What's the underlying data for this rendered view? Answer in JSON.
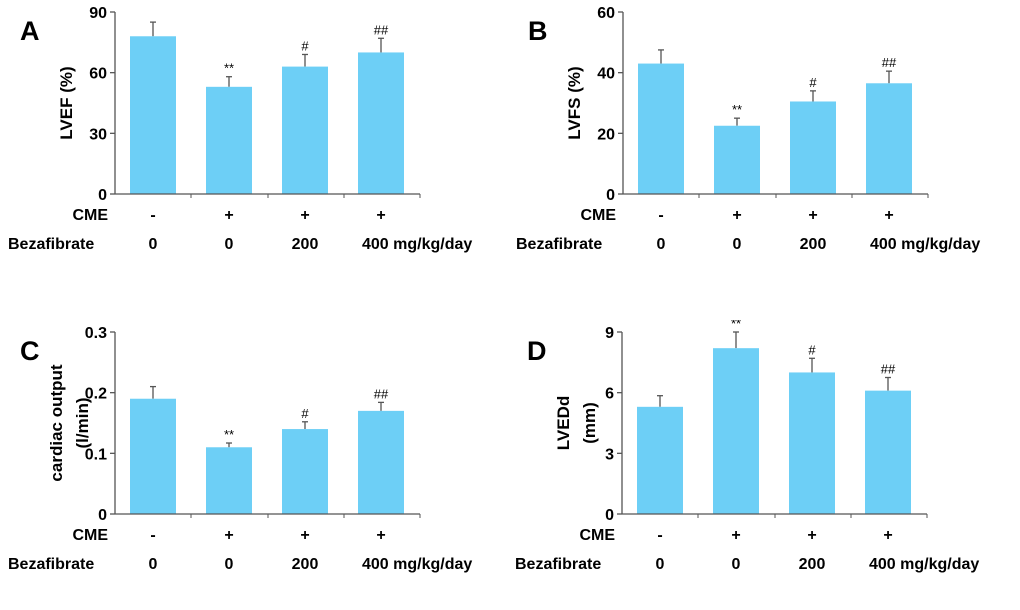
{
  "bar_color": "#6dcff6",
  "chart_data": [
    {
      "type": "bar",
      "panel": "A",
      "ylabel": [
        "LVEF  (%)"
      ],
      "ylim": [
        0,
        90
      ],
      "yticks": [
        0,
        30,
        60,
        90
      ],
      "values": [
        78,
        53,
        63,
        70
      ],
      "errors": [
        7,
        5,
        6,
        7
      ],
      "annotations": [
        "",
        "**",
        "#",
        "##"
      ]
    },
    {
      "type": "bar",
      "panel": "B",
      "ylabel": [
        "LVFS  (%)"
      ],
      "ylim": [
        0,
        60
      ],
      "yticks": [
        0,
        20,
        40,
        60
      ],
      "values": [
        43,
        22.5,
        30.5,
        36.5
      ],
      "errors": [
        4.5,
        2.5,
        3.5,
        4
      ],
      "annotations": [
        "",
        "**",
        "#",
        "##"
      ]
    },
    {
      "type": "bar",
      "panel": "C",
      "ylabel": [
        "cardiac output",
        "(l/min)"
      ],
      "ylim": [
        0,
        0.3
      ],
      "yticks": [
        0,
        0.1,
        0.2,
        0.3
      ],
      "values": [
        0.19,
        0.11,
        0.14,
        0.17
      ],
      "errors": [
        0.02,
        0.007,
        0.012,
        0.014
      ],
      "annotations": [
        "",
        "**",
        "#",
        "##"
      ]
    },
    {
      "type": "bar",
      "panel": "D",
      "ylabel": [
        "LVEDd",
        "(mm)"
      ],
      "ylim": [
        0,
        9
      ],
      "yticks": [
        0,
        3,
        6,
        9
      ],
      "values": [
        5.3,
        8.2,
        7.0,
        6.1
      ],
      "errors": [
        0.55,
        0.8,
        0.7,
        0.65
      ],
      "annotations": [
        "",
        "**",
        "#",
        "##"
      ]
    }
  ],
  "groups": {
    "cme_label": "CME",
    "cme": [
      "-",
      "+",
      "+",
      "+"
    ],
    "bezafibrate_label": "Bezafibrate",
    "bezafibrate": [
      "0",
      "0",
      "200",
      "400 mg/kg/day"
    ]
  }
}
